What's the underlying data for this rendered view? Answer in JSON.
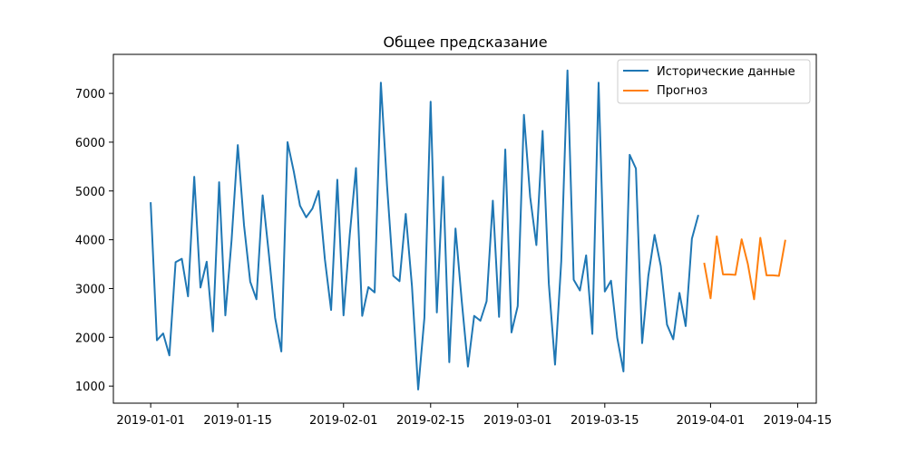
{
  "chart_data": {
    "type": "line",
    "title": "Общее предсказание",
    "xlabel": "",
    "ylabel": "",
    "x_axis": {
      "kind": "date",
      "range": [
        "2018-12-26",
        "2019-04-18"
      ],
      "ticks": [
        "2019-01-01",
        "2019-01-15",
        "2019-02-01",
        "2019-02-15",
        "2019-03-01",
        "2019-03-15",
        "2019-04-01",
        "2019-04-15"
      ]
    },
    "y_axis": {
      "range": [
        650,
        7800
      ],
      "ticks": [
        1000,
        2000,
        3000,
        4000,
        5000,
        6000,
        7000
      ]
    },
    "grid": false,
    "legend": {
      "position": "top-right"
    },
    "series": [
      {
        "name": "Исторические данные",
        "color": "#1f77b4",
        "start_date": "2019-01-01",
        "values": [
          4750,
          1940,
          2080,
          1630,
          3540,
          3610,
          2840,
          5290,
          3020,
          3550,
          2120,
          5180,
          2450,
          3990,
          5940,
          4300,
          3140,
          2780,
          4910,
          3700,
          2400,
          1710,
          6000,
          5400,
          4700,
          4460,
          4640,
          5000,
          3600,
          2560,
          5230,
          2450,
          4100,
          5470,
          2440,
          3030,
          2920,
          7220,
          5100,
          3260,
          3150,
          4530,
          3050,
          930,
          2400,
          6830,
          2510,
          5290,
          1490,
          4230,
          2750,
          1400,
          2440,
          2340,
          2740,
          4800,
          2420,
          5850,
          2100,
          2640,
          6560,
          4880,
          3890,
          6230,
          3100,
          1440,
          3560,
          7470,
          3180,
          2960,
          3680,
          2070,
          7220,
          2940,
          3160,
          1990,
          1300,
          5740,
          5460,
          1880,
          3260,
          4100,
          3460,
          2260,
          1960,
          2910,
          2230,
          4020,
          4490
        ]
      },
      {
        "name": "Прогноз",
        "color": "#ff7f0e",
        "start_date": "2019-03-31",
        "values": [
          3510,
          2800,
          4070,
          3290,
          3290,
          3280,
          4010,
          3500,
          2780,
          4040,
          3270,
          3270,
          3260,
          3980
        ]
      }
    ]
  }
}
